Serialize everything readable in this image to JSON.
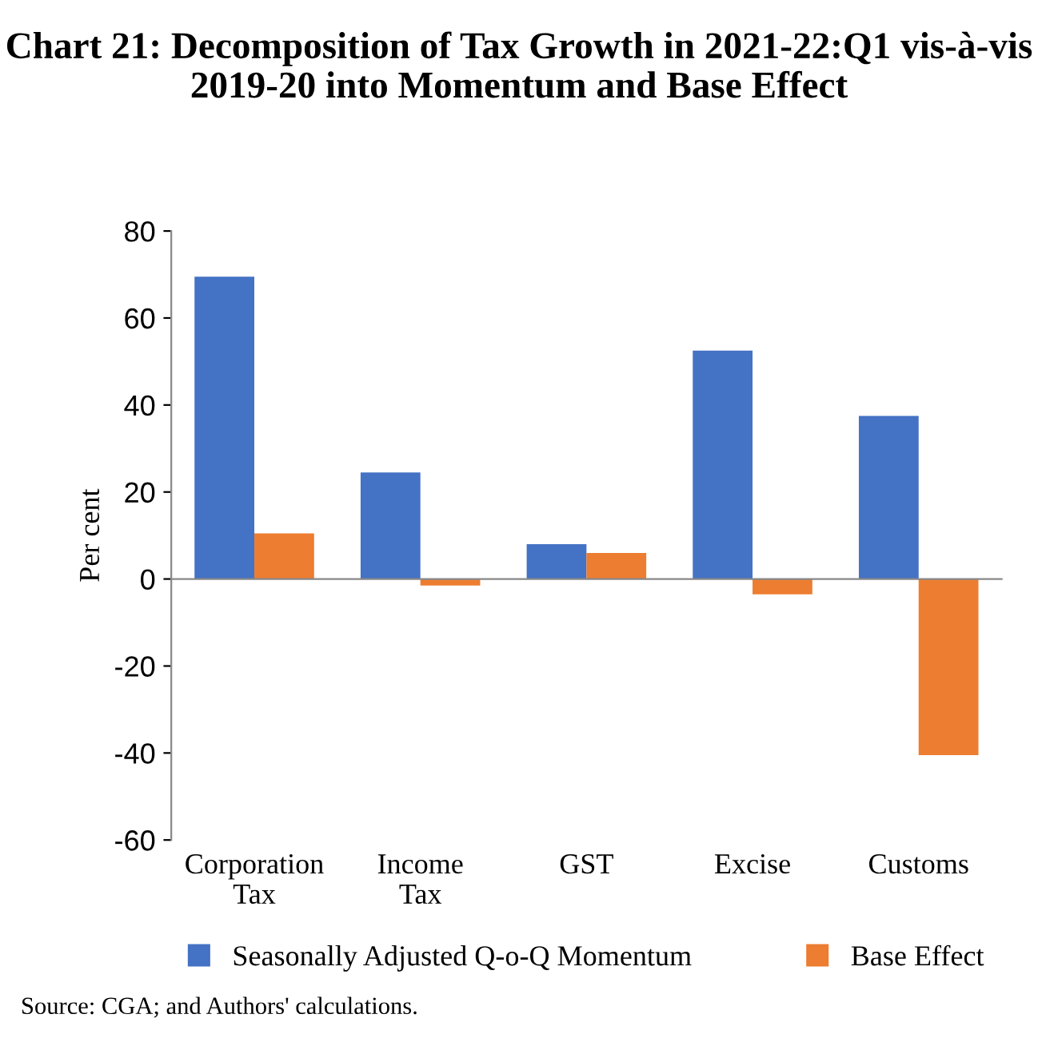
{
  "chart_data": {
    "type": "bar",
    "title": "Chart 21: Decomposition of Tax Growth in 2021-22:Q1 vis-à-vis 2019-20 into Momentum and Base Effect",
    "ylabel": "Per cent",
    "categories": [
      "Corporation\nTax",
      "Income\nTax",
      "GST",
      "Excise",
      "Customs"
    ],
    "series": [
      {
        "name": "Seasonally Adjusted Q-o-Q Momentum",
        "color": "#4472c4",
        "values": [
          69.5,
          24.5,
          8,
          52.5,
          37.5
        ]
      },
      {
        "name": "Base Effect",
        "color": "#ed7d31",
        "values": [
          10.5,
          -1.5,
          6,
          -3.5,
          -40.5
        ]
      }
    ],
    "ylim": [
      -60,
      80
    ],
    "yticks": [
      {
        "value": -60,
        "label": "-60"
      },
      {
        "value": -40,
        "label": "-40"
      },
      {
        "value": -20,
        "label": "-20"
      },
      0,
      20,
      40,
      60,
      80
    ],
    "legend": "bottom",
    "annotations": [
      "Source: CGA; and Authors' calculations."
    ]
  }
}
